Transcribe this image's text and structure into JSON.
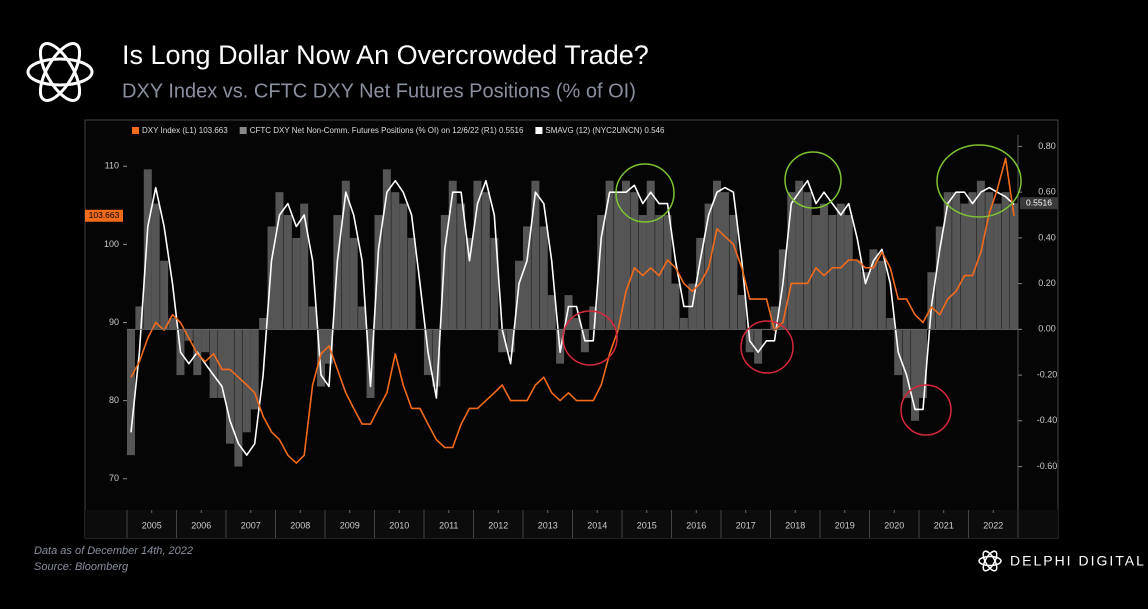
{
  "header": {
    "title": "Is Long Dollar Now An Overcrowded Trade?",
    "subtitle": "DXY Index vs. CFTC DXY Net Futures Positions (% of OI)"
  },
  "chart_data": {
    "type": "line",
    "grid": false,
    "x": [
      2005.08,
      2005.25,
      2005.42,
      2005.58,
      2005.75,
      2005.92,
      2006.08,
      2006.25,
      2006.42,
      2006.58,
      2006.75,
      2006.92,
      2007.08,
      2007.25,
      2007.42,
      2007.58,
      2007.75,
      2007.92,
      2008.08,
      2008.25,
      2008.42,
      2008.58,
      2008.75,
      2008.92,
      2009.08,
      2009.25,
      2009.42,
      2009.58,
      2009.75,
      2009.92,
      2010.08,
      2010.25,
      2010.42,
      2010.58,
      2010.75,
      2010.92,
      2011.08,
      2011.25,
      2011.42,
      2011.58,
      2011.75,
      2011.92,
      2012.08,
      2012.25,
      2012.42,
      2012.58,
      2012.75,
      2012.92,
      2013.08,
      2013.25,
      2013.42,
      2013.58,
      2013.75,
      2013.92,
      2014.08,
      2014.25,
      2014.42,
      2014.58,
      2014.75,
      2014.92,
      2015.08,
      2015.25,
      2015.42,
      2015.58,
      2015.75,
      2015.92,
      2016.08,
      2016.25,
      2016.42,
      2016.58,
      2016.75,
      2016.92,
      2017.08,
      2017.25,
      2017.42,
      2017.58,
      2017.75,
      2017.92,
      2018.08,
      2018.25,
      2018.42,
      2018.58,
      2018.75,
      2018.92,
      2019.08,
      2019.25,
      2019.42,
      2019.58,
      2019.75,
      2019.92,
      2020.08,
      2020.25,
      2020.42,
      2020.58,
      2020.75,
      2020.92,
      2021.08,
      2021.25,
      2021.42,
      2021.58,
      2021.75,
      2021.92,
      2022.08,
      2022.25,
      2022.42,
      2022.58,
      2022.75,
      2022.92
    ],
    "xlim": [
      2005,
      2023
    ],
    "xticks": [
      {
        "value": 2005.5,
        "label": "2005"
      },
      {
        "value": 2006.5,
        "label": "2006"
      },
      {
        "value": 2007.5,
        "label": "2007"
      },
      {
        "value": 2008.5,
        "label": "2008"
      },
      {
        "value": 2009.5,
        "label": "2009"
      },
      {
        "value": 2010.5,
        "label": "2010"
      },
      {
        "value": 2011.5,
        "label": "2011"
      },
      {
        "value": 2012.5,
        "label": "2012"
      },
      {
        "value": 2013.5,
        "label": "2013"
      },
      {
        "value": 2014.5,
        "label": "2014"
      },
      {
        "value": 2015.5,
        "label": "2015"
      },
      {
        "value": 2016.5,
        "label": "2016"
      },
      {
        "value": 2017.5,
        "label": "2017"
      },
      {
        "value": 2018.5,
        "label": "2018"
      },
      {
        "value": 2019.5,
        "label": "2019"
      },
      {
        "value": 2020.5,
        "label": "2020"
      },
      {
        "value": 2021.5,
        "label": "2021"
      },
      {
        "value": 2022.5,
        "label": "2022"
      }
    ],
    "ylim": [
      66,
      114
    ],
    "yticks": [
      70,
      80,
      90,
      100,
      110
    ],
    "y2lim": [
      -0.79,
      0.85
    ],
    "y2ticks": [
      {
        "value": 0.8,
        "label": "0.80"
      },
      {
        "value": 0.6,
        "label": "0.60"
      },
      {
        "value": 0.4,
        "label": "0.40"
      },
      {
        "value": 0.2,
        "label": "0.20"
      },
      {
        "value": 0,
        "label": "0.00"
      },
      {
        "value": -0.2,
        "label": "-0.20"
      },
      {
        "value": -0.4,
        "label": "-0.40"
      },
      {
        "value": -0.6,
        "label": "-0.60"
      }
    ],
    "series": [
      {
        "name": "CFTC DXY Net Non-Comm. Futures Positions (% OI) on 12/6/22 (R1) 0.5516",
        "color": "#555555",
        "axis": "y2",
        "style": "bar",
        "last_label": "0.5516",
        "values": [
          -0.55,
          0.1,
          0.7,
          0.55,
          0.3,
          0.05,
          -0.2,
          -0.05,
          -0.2,
          -0.1,
          -0.3,
          -0.3,
          -0.5,
          -0.6,
          -0.45,
          -0.35,
          0.05,
          0.45,
          0.6,
          0.5,
          0.4,
          0.55,
          0.1,
          -0.25,
          -0.15,
          0.5,
          0.65,
          0.4,
          0.1,
          -0.3,
          0.5,
          0.7,
          0.6,
          0.55,
          0.4,
          0.0,
          -0.2,
          -0.25,
          0.5,
          0.65,
          0.55,
          0.4,
          0.65,
          0.6,
          0.4,
          -0.1,
          -0.1,
          0.3,
          0.45,
          0.65,
          0.45,
          0.15,
          -0.15,
          0.15,
          0.05,
          -0.1,
          0.1,
          0.5,
          0.65,
          0.6,
          0.65,
          0.6,
          0.5,
          0.65,
          0.5,
          0.5,
          0.2,
          0.05,
          0.2,
          0.4,
          0.55,
          0.65,
          0.6,
          0.5,
          0.15,
          -0.1,
          -0.15,
          0.0,
          0.1,
          0.35,
          0.6,
          0.65,
          0.6,
          0.5,
          0.55,
          0.5,
          0.55,
          0.5,
          0.3,
          0.25,
          0.35,
          0.3,
          0.05,
          -0.2,
          -0.3,
          -0.4,
          -0.3,
          0.25,
          0.45,
          0.6,
          0.6,
          0.55,
          0.6,
          0.65,
          0.6,
          0.55,
          0.6,
          0.5516
        ]
      },
      {
        "name": "SMAVG (12) (NYC2UNCN) 0.546",
        "color": "#ffffff",
        "axis": "y2",
        "style": "line",
        "values": [
          -0.45,
          -0.1,
          0.45,
          0.62,
          0.45,
          0.2,
          -0.1,
          -0.15,
          -0.1,
          -0.15,
          -0.2,
          -0.25,
          -0.4,
          -0.5,
          -0.55,
          -0.5,
          -0.2,
          0.3,
          0.5,
          0.55,
          0.45,
          0.5,
          0.3,
          -0.2,
          -0.25,
          0.3,
          0.6,
          0.5,
          0.3,
          -0.25,
          0.35,
          0.6,
          0.65,
          0.6,
          0.5,
          0.2,
          -0.1,
          -0.3,
          0.35,
          0.6,
          0.6,
          0.3,
          0.55,
          0.65,
          0.5,
          0.0,
          -0.15,
          0.2,
          0.3,
          0.6,
          0.55,
          0.3,
          -0.1,
          0.1,
          0.1,
          -0.05,
          -0.05,
          0.4,
          0.6,
          0.6,
          0.6,
          0.63,
          0.55,
          0.6,
          0.55,
          0.55,
          0.3,
          0.1,
          0.1,
          0.3,
          0.5,
          0.6,
          0.62,
          0.6,
          0.3,
          -0.05,
          -0.1,
          -0.05,
          -0.05,
          0.2,
          0.55,
          0.6,
          0.65,
          0.55,
          0.6,
          0.55,
          0.5,
          0.55,
          0.4,
          0.2,
          0.3,
          0.35,
          0.2,
          -0.1,
          -0.2,
          -0.35,
          -0.35,
          0.1,
          0.35,
          0.55,
          0.6,
          0.6,
          0.55,
          0.6,
          0.62,
          0.6,
          0.58,
          0.546
        ]
      },
      {
        "name": "DXY Index (L1) 103.663",
        "color": "#f26b1d",
        "axis": "y",
        "style": "line",
        "last_label": "103.663",
        "values": [
          83,
          85,
          88,
          90,
          89,
          91,
          90,
          88,
          86,
          85,
          86,
          84,
          84,
          83,
          82,
          81,
          78,
          76,
          75,
          73,
          72,
          73,
          82,
          86,
          87,
          84,
          81,
          79,
          77,
          77,
          79,
          81,
          86,
          82,
          79,
          79,
          77,
          75,
          74,
          74,
          77,
          79,
          79,
          80,
          81,
          82,
          80,
          80,
          80,
          82,
          83,
          81,
          80,
          81,
          80,
          80,
          80,
          82,
          86,
          89,
          94,
          97,
          96,
          97,
          96,
          98,
          97,
          95,
          94,
          95,
          97,
          102,
          101,
          100,
          97,
          93,
          93,
          93,
          89,
          90,
          95,
          95,
          95,
          97,
          96,
          97,
          97,
          98,
          98,
          97,
          97,
          99,
          97,
          93,
          93,
          91,
          90,
          92,
          91,
          93,
          94,
          96,
          96,
          99,
          104,
          107,
          111,
          103.663
        ]
      }
    ]
  },
  "footer": {
    "note": "Data as of December 14th, 2022",
    "source": "Source: Bloomberg",
    "brand": "DELPHI DIGITAL"
  }
}
